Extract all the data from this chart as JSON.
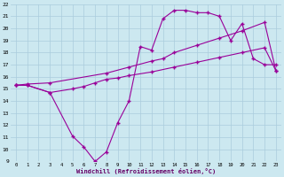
{
  "xlabel": "Windchill (Refroidissement éolien,°C)",
  "xlim": [
    -0.5,
    23.5
  ],
  "ylim": [
    9,
    22
  ],
  "xticks": [
    0,
    1,
    2,
    3,
    4,
    5,
    6,
    7,
    8,
    9,
    10,
    11,
    12,
    13,
    14,
    15,
    16,
    17,
    18,
    19,
    20,
    21,
    22,
    23
  ],
  "yticks": [
    9,
    10,
    11,
    12,
    13,
    14,
    15,
    16,
    17,
    18,
    19,
    20,
    21,
    22
  ],
  "background_color": "#cce8f0",
  "grid_color": "#aaccdd",
  "line_color": "#990099",
  "line1_x": [
    0,
    1,
    3,
    5,
    6,
    7,
    8,
    9,
    10,
    11,
    12,
    13,
    14,
    15,
    16,
    17,
    18,
    19,
    20,
    21,
    22,
    23
  ],
  "line1_y": [
    15.3,
    15.3,
    14.7,
    11.1,
    10.2,
    9.0,
    9.8,
    12.2,
    14.0,
    18.5,
    18.2,
    20.8,
    21.5,
    21.5,
    21.3,
    21.3,
    21.0,
    19.0,
    20.4,
    17.5,
    17.0,
    17.0
  ],
  "line2_x": [
    0,
    1,
    3,
    8,
    10,
    12,
    13,
    14,
    16,
    18,
    20,
    22,
    23
  ],
  "line2_y": [
    15.3,
    15.4,
    15.5,
    16.3,
    16.8,
    17.3,
    17.5,
    18.0,
    18.6,
    19.2,
    19.8,
    20.5,
    16.5
  ],
  "line3_x": [
    0,
    1,
    3,
    5,
    6,
    7,
    8,
    9,
    10,
    12,
    14,
    16,
    18,
    20,
    22,
    23
  ],
  "line3_y": [
    15.3,
    15.3,
    14.7,
    15.0,
    15.2,
    15.5,
    15.8,
    15.9,
    16.1,
    16.4,
    16.8,
    17.2,
    17.6,
    18.0,
    18.4,
    16.5
  ]
}
